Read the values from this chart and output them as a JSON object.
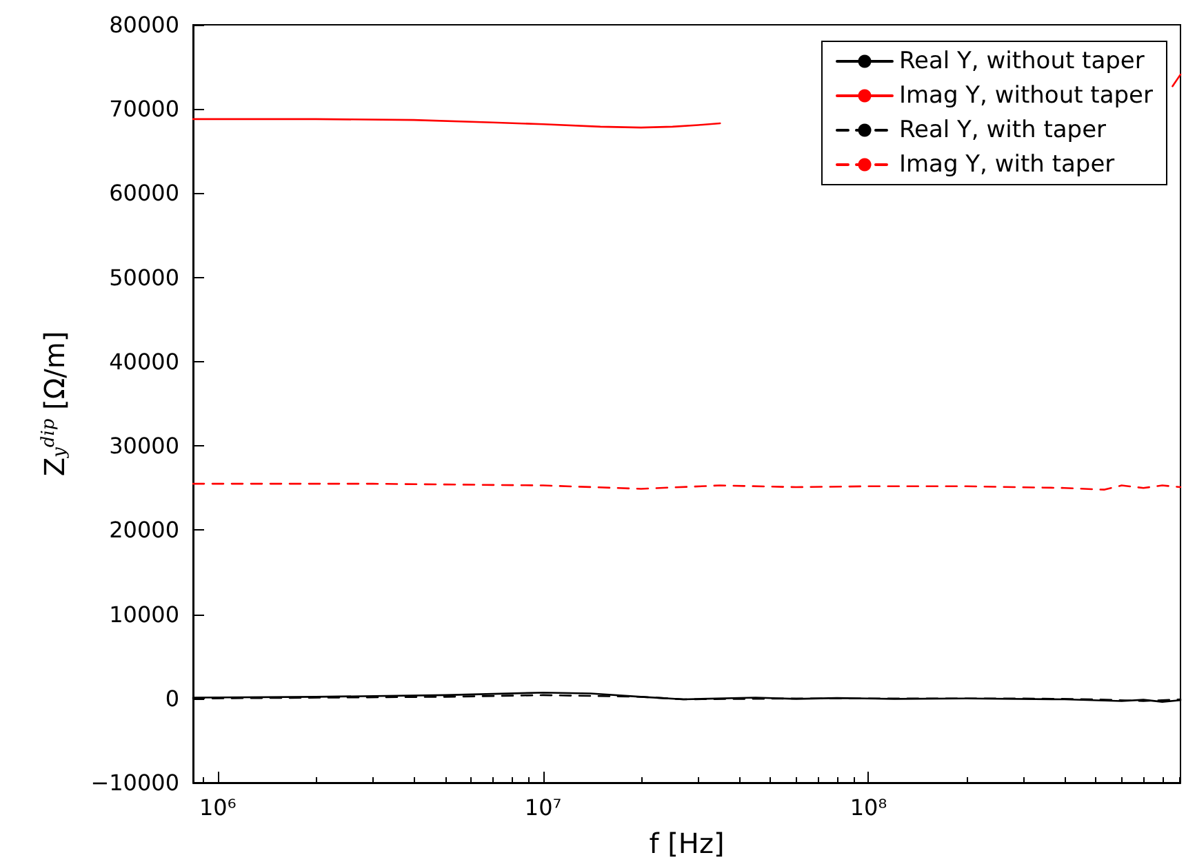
{
  "chart_data": {
    "type": "line",
    "xlabel": "f [Hz]",
    "ylabel": "Z$_{y}$$^{dip}$ [Ω/m]",
    "log": "x",
    "grid": false,
    "legend": "top right",
    "line_style": "solid",
    "marker": "none",
    "xlim": [
      840000,
      910000000
    ],
    "xticks": [
      {
        "value": 1000000,
        "label": "10⁶"
      },
      {
        "value": 10000000,
        "label": "10⁷"
      },
      {
        "value": 100000000,
        "label": "10⁸"
      }
    ],
    "ylim": [
      -10000,
      80000
    ],
    "yticks": [
      {
        "value": -10000,
        "label": "−10000"
      },
      0,
      10000,
      20000,
      30000,
      40000,
      50000,
      60000,
      70000,
      80000
    ],
    "series": [
      {
        "name": "Real Y, without taper",
        "color": "#000000",
        "x": [
          840000,
          2000000,
          5000000,
          10000000,
          14000000,
          20000000,
          27000000,
          45000000,
          60000000,
          80000000,
          120000000,
          200000000,
          400000000,
          600000000,
          700000000,
          800000000,
          910000000
        ],
        "values": [
          100,
          200,
          400,
          700,
          600,
          200,
          -100,
          100,
          -50,
          50,
          -50,
          0,
          -100,
          -300,
          -150,
          -400,
          -200
        ]
      },
      {
        "name": "Imag Y, without taper",
        "color": "#ff0000",
        "x": [
          840000,
          1000000,
          2000000,
          4000000,
          7000000,
          10000000,
          15000000,
          20000000,
          25000000,
          30000000,
          35000000,
          100000000,
          860000000,
          910000000
        ],
        "values": [
          68800,
          68800,
          68800,
          68700,
          68400,
          68200,
          67900,
          67800,
          67900,
          68100,
          68300,
          null,
          72700,
          74100
        ]
      },
      {
        "name": "Real Y, with taper",
        "color": "#000000",
        "line_style": "dashed",
        "x": [
          840000,
          5000000,
          10000000,
          20000000,
          27000000,
          60000000,
          100000000,
          300000000,
          500000000,
          700000000,
          910000000
        ],
        "values": [
          0,
          200,
          400,
          200,
          -100,
          0,
          0,
          0,
          -100,
          -300,
          -100
        ]
      },
      {
        "name": "Imag Y, with taper",
        "color": "#ff0000",
        "line_style": "dashed",
        "x": [
          840000,
          3000000,
          10000000,
          20000000,
          35000000,
          60000000,
          100000000,
          200000000,
          400000000,
          530000000,
          600000000,
          700000000,
          800000000,
          910000000
        ],
        "values": [
          25500,
          25500,
          25300,
          24900,
          25300,
          25100,
          25200,
          25200,
          25000,
          24800,
          25300,
          25000,
          25300,
          25100
        ]
      }
    ]
  }
}
